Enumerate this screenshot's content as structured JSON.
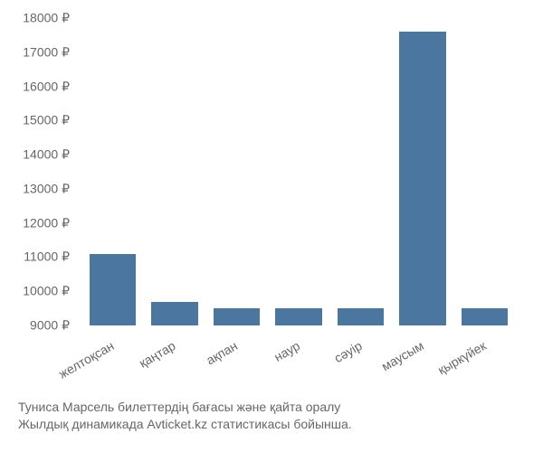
{
  "chart": {
    "type": "bar",
    "categories": [
      "желтоқсан",
      "қаңтар",
      "ақпан",
      "наур",
      "сәуір",
      "маусым",
      "қыркүйек"
    ],
    "values": [
      11100,
      9700,
      9500,
      9500,
      9500,
      17600,
      9500
    ],
    "bar_color": "#4a76a0",
    "background_color": "#ffffff",
    "text_color": "#666666",
    "ymin": 9000,
    "ymax": 18000,
    "ytick_step": 1000,
    "currency_symbol": "₽",
    "yticks": [
      9000,
      10000,
      11000,
      12000,
      13000,
      14000,
      15000,
      16000,
      17000,
      18000
    ],
    "label_fontsize": 14,
    "bar_width_ratio": 0.75,
    "x_label_rotation": -30
  },
  "caption": {
    "line1": "Туниса Марсель билеттердің бағасы және қайта оралу",
    "line2": "Жылдық динамикада Avticket.kz статистикасы бойынша."
  }
}
